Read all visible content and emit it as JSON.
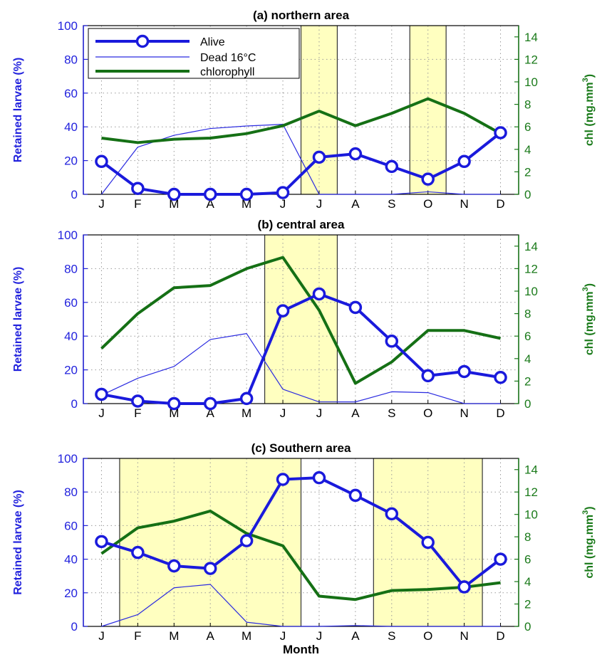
{
  "colors": {
    "alive": "#1a1adc",
    "dead": "#2a2ae0",
    "chlorophyll": "#157015",
    "shade": "#ffffc0",
    "left_axis": "#2222dd",
    "right_axis": "#1a7a1a"
  },
  "legend": {
    "alive": "Alive",
    "dead": "Dead 16°C",
    "chlorophyll": "chlorophyll"
  },
  "chart_data": [
    {
      "type": "line",
      "title": "(a) northern area",
      "categories": [
        "J",
        "F",
        "M",
        "A",
        "M",
        "J",
        "J",
        "A",
        "S",
        "O",
        "N",
        "D"
      ],
      "ylabel": "Retained larvae (%)",
      "ylabel2": "chl (mg.m3)",
      "ylim": [
        0,
        100
      ],
      "ylim2": [
        0,
        15
      ],
      "yticks": [
        0,
        20,
        40,
        60,
        80,
        100
      ],
      "yticks2": [
        0,
        2,
        4,
        6,
        8,
        10,
        12,
        14
      ],
      "shaded": [
        [
          5.5,
          6.5
        ],
        [
          8.5,
          9.5
        ]
      ],
      "legend_position": "top-left",
      "series": [
        {
          "name": "Alive",
          "axis": "left",
          "values": [
            19.5,
            3.5,
            0,
            0,
            0,
            1,
            22,
            24,
            16.5,
            9,
            19.5,
            36.5
          ]
        },
        {
          "name": "Dead 16°C",
          "axis": "left",
          "values": [
            0,
            28,
            35,
            39,
            40.5,
            41.5,
            0,
            0,
            0,
            1.5,
            0,
            0
          ]
        },
        {
          "name": "chlorophyll",
          "axis": "right",
          "values": [
            5,
            4.6,
            4.9,
            5,
            5.4,
            6.1,
            7.4,
            6.1,
            7.2,
            8.5,
            7.2,
            5.4
          ]
        }
      ]
    },
    {
      "type": "line",
      "title": "(b) central area",
      "categories": [
        "J",
        "F",
        "M",
        "A",
        "M",
        "J",
        "J",
        "A",
        "S",
        "O",
        "N",
        "D"
      ],
      "ylabel": "Retained larvae (%)",
      "ylabel2": "chl (mg.m3)",
      "ylim": [
        0,
        100
      ],
      "ylim2": [
        0,
        15
      ],
      "yticks": [
        0,
        20,
        40,
        60,
        80,
        100
      ],
      "yticks2": [
        0,
        2,
        4,
        6,
        8,
        10,
        12,
        14
      ],
      "shaded": [
        [
          4.5,
          6.5
        ]
      ],
      "series": [
        {
          "name": "Alive",
          "axis": "left",
          "values": [
            5.5,
            1.5,
            0,
            0,
            3,
            55,
            65,
            57,
            37,
            16.5,
            19,
            15.5
          ]
        },
        {
          "name": "Dead 16°C",
          "axis": "left",
          "values": [
            5,
            15,
            22,
            38,
            41.5,
            8.5,
            1,
            1,
            7,
            6.5,
            0,
            0
          ]
        },
        {
          "name": "chlorophyll",
          "axis": "right",
          "values": [
            4.9,
            8,
            10.3,
            10.5,
            12,
            13,
            8.3,
            1.8,
            3.7,
            6.5,
            6.5,
            5.8
          ]
        }
      ]
    },
    {
      "type": "line",
      "title": "(c) Southern area",
      "categories": [
        "J",
        "F",
        "M",
        "A",
        "M",
        "J",
        "J",
        "A",
        "S",
        "O",
        "N",
        "D"
      ],
      "ylabel": "Retained larvae (%)",
      "ylabel2": "chl (mg.m3)",
      "xlabel": "Month",
      "ylim": [
        0,
        100
      ],
      "ylim2": [
        0,
        15
      ],
      "yticks": [
        0,
        20,
        40,
        60,
        80,
        100
      ],
      "yticks2": [
        0,
        2,
        4,
        6,
        8,
        10,
        12,
        14
      ],
      "shaded": [
        [
          0.5,
          5.5
        ],
        [
          7.5,
          10.5
        ]
      ],
      "series": [
        {
          "name": "Alive",
          "axis": "left",
          "values": [
            50.5,
            44,
            36,
            34.5,
            51,
            87.5,
            88.5,
            78,
            67,
            50,
            23.5,
            40
          ]
        },
        {
          "name": "Dead 16°C",
          "axis": "left",
          "values": [
            0,
            7,
            23,
            25,
            2.5,
            0,
            0,
            0.5,
            0,
            0,
            0,
            0
          ]
        },
        {
          "name": "chlorophyll",
          "axis": "right",
          "values": [
            6.5,
            8.8,
            9.4,
            10.3,
            8.3,
            7.2,
            2.7,
            2.4,
            3.2,
            3.3,
            3.5,
            3.9
          ]
        }
      ]
    }
  ]
}
